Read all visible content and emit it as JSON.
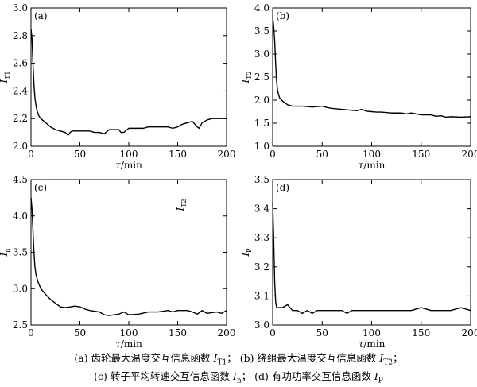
{
  "chart_data": [
    {
      "type": "line",
      "panel_label": "(a)",
      "ylabel": "I",
      "ylabel_sub": "T1",
      "xlabel_sym": "τ",
      "xlabel_unit": "/min",
      "xlim": [
        0,
        200
      ],
      "ylim": [
        2.0,
        3.0
      ],
      "xticks": [
        "0",
        "50",
        "100",
        "150",
        "200"
      ],
      "yticks": [
        "2.0",
        "2.2",
        "2.4",
        "2.6",
        "2.8",
        "3.0"
      ],
      "ytick_values": [
        2.0,
        2.2,
        2.4,
        2.6,
        2.8,
        3.0
      ],
      "x": [
        0,
        1,
        2,
        3,
        4,
        5,
        6,
        8,
        10,
        15,
        20,
        25,
        30,
        35,
        38,
        40,
        42,
        45,
        50,
        55,
        60,
        65,
        70,
        75,
        80,
        85,
        90,
        92,
        95,
        100,
        105,
        110,
        115,
        120,
        125,
        130,
        135,
        140,
        145,
        150,
        155,
        160,
        165,
        170,
        172,
        175,
        180,
        185,
        190,
        195,
        200
      ],
      "y": [
        2.85,
        2.78,
        2.6,
        2.45,
        2.35,
        2.3,
        2.26,
        2.22,
        2.2,
        2.17,
        2.14,
        2.12,
        2.11,
        2.1,
        2.08,
        2.1,
        2.11,
        2.11,
        2.11,
        2.11,
        2.11,
        2.1,
        2.1,
        2.09,
        2.12,
        2.12,
        2.12,
        2.1,
        2.1,
        2.13,
        2.13,
        2.13,
        2.13,
        2.14,
        2.14,
        2.14,
        2.14,
        2.14,
        2.13,
        2.14,
        2.16,
        2.17,
        2.18,
        2.14,
        2.13,
        2.17,
        2.19,
        2.2,
        2.2,
        2.2,
        2.2
      ]
    },
    {
      "type": "line",
      "panel_label": "(b)",
      "ylabel": "I",
      "ylabel_sub": "T2",
      "xlabel_sym": "τ",
      "xlabel_unit": "/min",
      "xlim": [
        0,
        200
      ],
      "ylim": [
        1.0,
        4.0
      ],
      "xticks": [
        "0",
        "50",
        "100",
        "150",
        "200"
      ],
      "yticks": [
        "1.0",
        "1.5",
        "2.0",
        "2.5",
        "3.0",
        "3.5",
        "4.0"
      ],
      "ytick_values": [
        1.0,
        1.5,
        2.0,
        2.5,
        3.0,
        3.5,
        4.0
      ],
      "x": [
        0,
        1,
        2,
        3,
        4,
        5,
        7,
        10,
        15,
        20,
        30,
        40,
        50,
        55,
        60,
        70,
        80,
        85,
        90,
        95,
        100,
        105,
        110,
        120,
        130,
        135,
        140,
        150,
        160,
        165,
        170,
        175,
        180,
        190,
        200
      ],
      "y": [
        3.8,
        3.6,
        3.3,
        2.8,
        2.4,
        2.2,
        2.05,
        1.98,
        1.9,
        1.87,
        1.87,
        1.85,
        1.87,
        1.84,
        1.82,
        1.8,
        1.78,
        1.77,
        1.8,
        1.76,
        1.75,
        1.74,
        1.74,
        1.72,
        1.72,
        1.7,
        1.72,
        1.68,
        1.68,
        1.65,
        1.66,
        1.63,
        1.64,
        1.63,
        1.64
      ]
    },
    {
      "type": "line",
      "panel_label": "(c)",
      "ylabel": "I",
      "ylabel_sub": "n",
      "annotation": "I",
      "annotation_sub": "T2",
      "xlabel_sym": "τ",
      "xlabel_unit": "/min",
      "xlim": [
        0,
        200
      ],
      "ylim": [
        2.5,
        4.5
      ],
      "xticks": [
        "0",
        "50",
        "100",
        "150",
        "200"
      ],
      "yticks": [
        "2.5",
        "3.0",
        "3.5",
        "4.0",
        "4.5"
      ],
      "ytick_values": [
        2.5,
        3.0,
        3.5,
        4.0,
        4.5
      ],
      "x": [
        0,
        1,
        2,
        3,
        4,
        5,
        7,
        10,
        15,
        20,
        25,
        30,
        35,
        40,
        45,
        50,
        55,
        60,
        70,
        75,
        80,
        85,
        90,
        95,
        100,
        110,
        120,
        130,
        140,
        145,
        150,
        160,
        165,
        170,
        175,
        180,
        190,
        195,
        200
      ],
      "y": [
        4.25,
        4.1,
        3.8,
        3.5,
        3.3,
        3.2,
        3.1,
        3.0,
        2.92,
        2.85,
        2.8,
        2.75,
        2.74,
        2.75,
        2.76,
        2.75,
        2.72,
        2.7,
        2.68,
        2.64,
        2.63,
        2.64,
        2.65,
        2.68,
        2.64,
        2.65,
        2.68,
        2.68,
        2.7,
        2.68,
        2.7,
        2.7,
        2.68,
        2.65,
        2.7,
        2.66,
        2.68,
        2.66,
        2.7
      ]
    },
    {
      "type": "line",
      "panel_label": "(d)",
      "ylabel": "I",
      "ylabel_sub": "P",
      "xlabel_sym": "τ",
      "xlabel_unit": "/min",
      "xlim": [
        0,
        200
      ],
      "ylim": [
        3.0,
        3.5
      ],
      "xticks": [
        "0",
        "50",
        "100",
        "150",
        "200"
      ],
      "yticks": [
        "3.0",
        "3.1",
        "3.2",
        "3.3",
        "3.4",
        "3.5"
      ],
      "ytick_values": [
        3.0,
        3.1,
        3.2,
        3.3,
        3.4,
        3.5
      ],
      "x": [
        0,
        1,
        2,
        3,
        4,
        5,
        6,
        8,
        10,
        15,
        20,
        25,
        30,
        35,
        40,
        45,
        50,
        60,
        70,
        75,
        80,
        90,
        100,
        110,
        120,
        130,
        140,
        150,
        160,
        170,
        180,
        190,
        200
      ],
      "y": [
        3.42,
        3.3,
        3.15,
        3.08,
        3.06,
        3.06,
        3.06,
        3.06,
        3.06,
        3.07,
        3.05,
        3.05,
        3.04,
        3.05,
        3.04,
        3.05,
        3.05,
        3.05,
        3.05,
        3.04,
        3.05,
        3.05,
        3.05,
        3.05,
        3.05,
        3.05,
        3.05,
        3.06,
        3.05,
        3.05,
        3.05,
        3.06,
        3.05
      ]
    }
  ],
  "caption": {
    "line1": {
      "part_a": "(a)  齿轮最大温度交互信息函数 ",
      "sym_a": "I",
      "sub_a": "T1",
      "sep": "；  ",
      "part_b": "(b)  绕组最大温度交互信息函数 ",
      "sym_b": "I",
      "sub_b": "T2",
      "end": "；"
    },
    "line2": {
      "part_c": "(c)  转子平均转速交互信息函数 ",
      "sym_c": "I",
      "sub_c": "n",
      "sep": "；  ",
      "part_d": "(d)  有功功率交互信息函数 ",
      "sym_d": "I",
      "sub_d": "P"
    }
  }
}
